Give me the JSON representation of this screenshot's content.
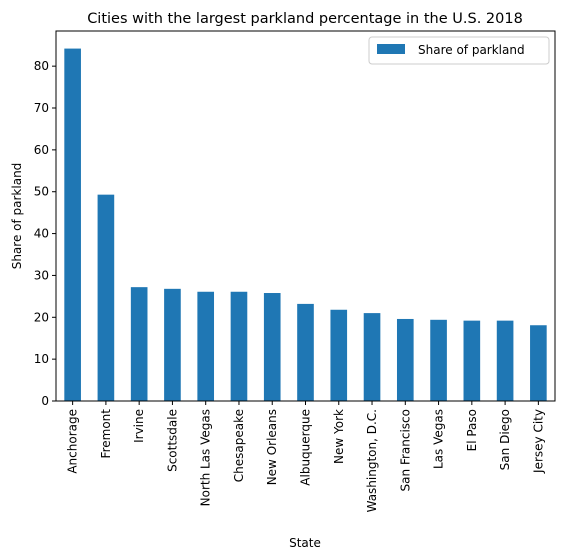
{
  "chart_data": {
    "type": "bar",
    "title": "Cities with the largest parkland percentage in the U.S. 2018",
    "xlabel": "State",
    "ylabel": "Share of parkland",
    "categories": [
      "Anchorage",
      "Fremont",
      "Irvine",
      "Scottsdale",
      "North Las Vegas",
      "Chesapeake",
      "New Orleans",
      "Albuquerque",
      "New York",
      "Washington, D.C.",
      "San Francisco",
      "Las Vegas",
      "El Paso",
      "San Diego",
      "Jersey City"
    ],
    "series": [
      {
        "name": "Share of parkland",
        "color": "#1f77b4",
        "values": [
          84.2,
          49.3,
          27.2,
          26.8,
          26.1,
          26.1,
          25.8,
          23.2,
          21.8,
          21.0,
          19.6,
          19.4,
          19.2,
          19.2,
          18.1
        ]
      }
    ],
    "ylim": [
      0,
      88.4
    ],
    "yticks": [
      0,
      10,
      20,
      30,
      40,
      50,
      60,
      70,
      80
    ],
    "legend_position": "top-right",
    "grid": false
  }
}
